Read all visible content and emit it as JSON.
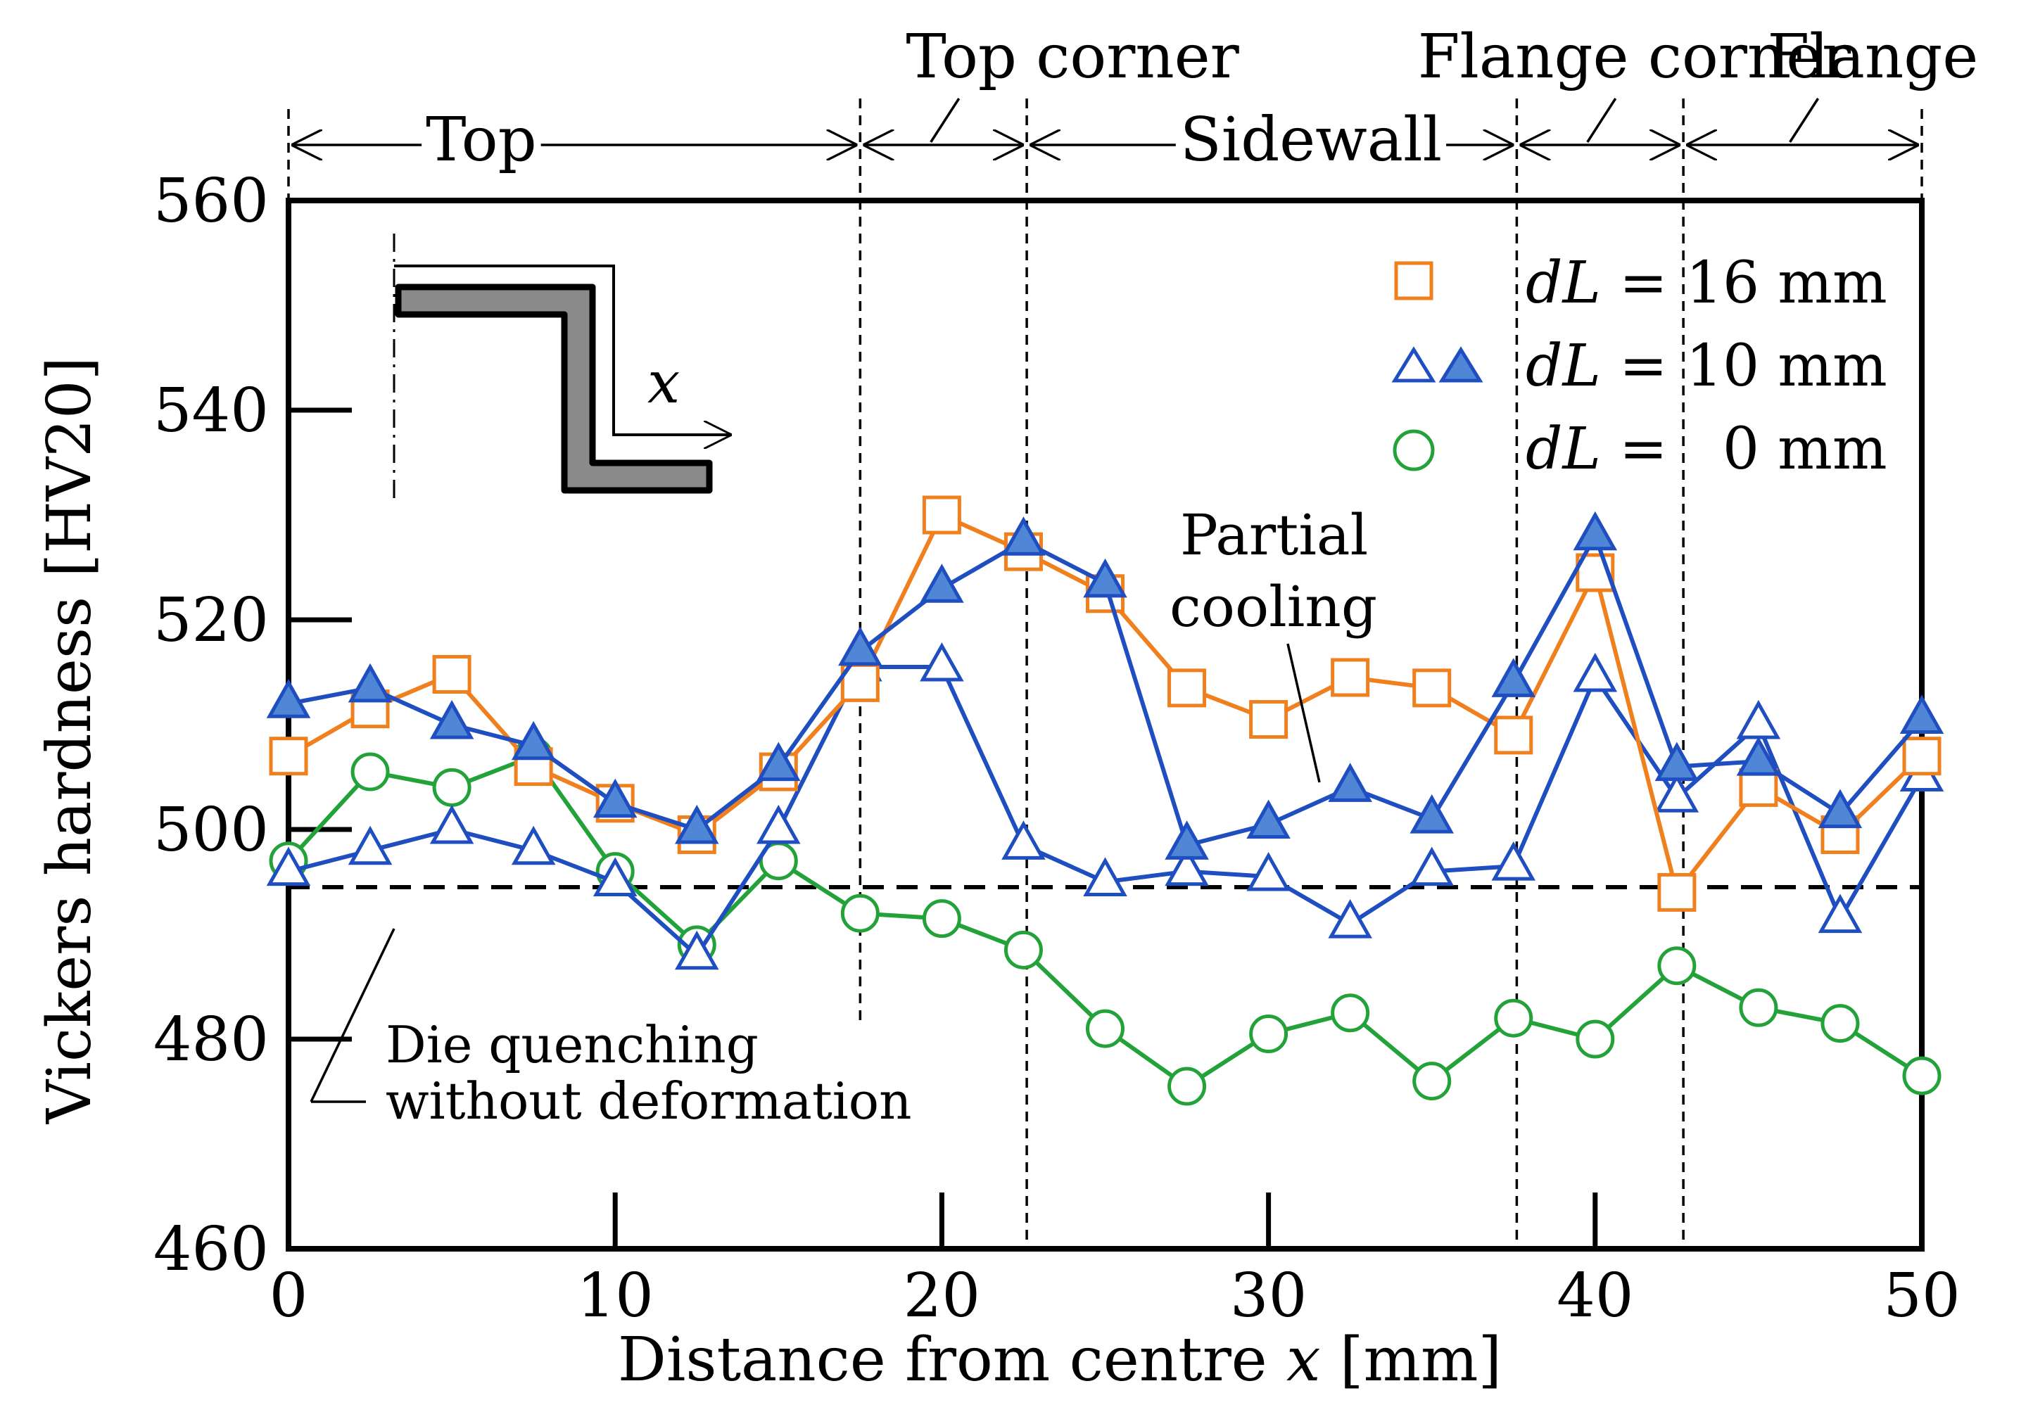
{
  "chart_data": {
    "type": "line",
    "xlabel_prefix": "Distance from centre ",
    "xlabel_var": "x",
    "xlabel_suffix": " [mm]",
    "ylabel": "Vickers hardness [HV20]",
    "xlim": [
      0,
      50
    ],
    "ylim": [
      460,
      560
    ],
    "xticks": [
      0,
      10,
      20,
      30,
      40,
      50
    ],
    "yticks": [
      460,
      480,
      500,
      520,
      540,
      560
    ],
    "grid": false,
    "legend_position": "top-right",
    "regions": [
      {
        "label": "Top",
        "from": 0,
        "to": 17.5
      },
      {
        "label": "Top corner",
        "from": 17.5,
        "to": 22.6
      },
      {
        "label": "Sidewall",
        "from": 22.6,
        "to": 37.6
      },
      {
        "label": "Flange corner",
        "from": 37.6,
        "to": 42.7
      },
      {
        "label": "Flange",
        "from": 42.7,
        "to": 50
      }
    ],
    "region_boundaries": [
      17.5,
      22.6,
      37.6,
      42.7
    ],
    "reference_line": {
      "value": 494.5,
      "label_line1": "Die quenching",
      "label_line2": "without deformation"
    },
    "annotation": {
      "line1": "Partial",
      "line2": "cooling"
    },
    "inset_axis_label": "x",
    "x": [
      0,
      2.5,
      5,
      7.5,
      10,
      12.5,
      15,
      17.5,
      20,
      22.5,
      25,
      27.5,
      30,
      32.5,
      35,
      37.5,
      40,
      42.5,
      45,
      47.5,
      50
    ],
    "series": [
      {
        "name": "dL = 16 mm",
        "legend_var": "dL",
        "legend_value": " = 16 mm",
        "color": "#F07F1E",
        "marker": "square-open",
        "values": [
          507,
          511.5,
          514.8,
          506,
          502.5,
          499.5,
          505.5,
          514,
          530,
          526.5,
          522.5,
          513.5,
          510.5,
          514.5,
          513.5,
          509,
          524.5,
          494,
          504,
          499.5,
          507
        ]
      },
      {
        "name": "dL = 10 mm (partial cooling)",
        "legend_var": "dL",
        "legend_value": " = 10 mm",
        "color": "#1F4EC0",
        "fill": "#4F86D6",
        "marker": "triangle-filled",
        "values": [
          512,
          513.5,
          510,
          508,
          502.5,
          500,
          506,
          517,
          523,
          527.5,
          523.5,
          498.5,
          500.5,
          504,
          501,
          514,
          528,
          506,
          506.5,
          501.5,
          510.5
        ]
      },
      {
        "name": "dL = 10 mm",
        "color": "#1F4EC0",
        "marker": "triangle-open",
        "values": [
          496,
          498,
          500,
          498,
          495,
          488,
          500,
          515.5,
          515.5,
          498.5,
          495,
          496,
          495.5,
          491,
          496,
          496.5,
          514.5,
          503,
          510,
          491.5,
          505
        ]
      },
      {
        "name": "dL = 0 mm",
        "legend_var": "dL",
        "legend_value": " =   0 mm",
        "color": "#23A23A",
        "marker": "circle-open",
        "values": [
          497,
          505.5,
          504,
          507,
          496,
          489,
          497,
          492,
          491.5,
          488.5,
          481,
          475.5,
          480.5,
          482.5,
          476,
          482,
          480,
          487,
          483,
          481.5,
          476.5
        ]
      }
    ]
  }
}
